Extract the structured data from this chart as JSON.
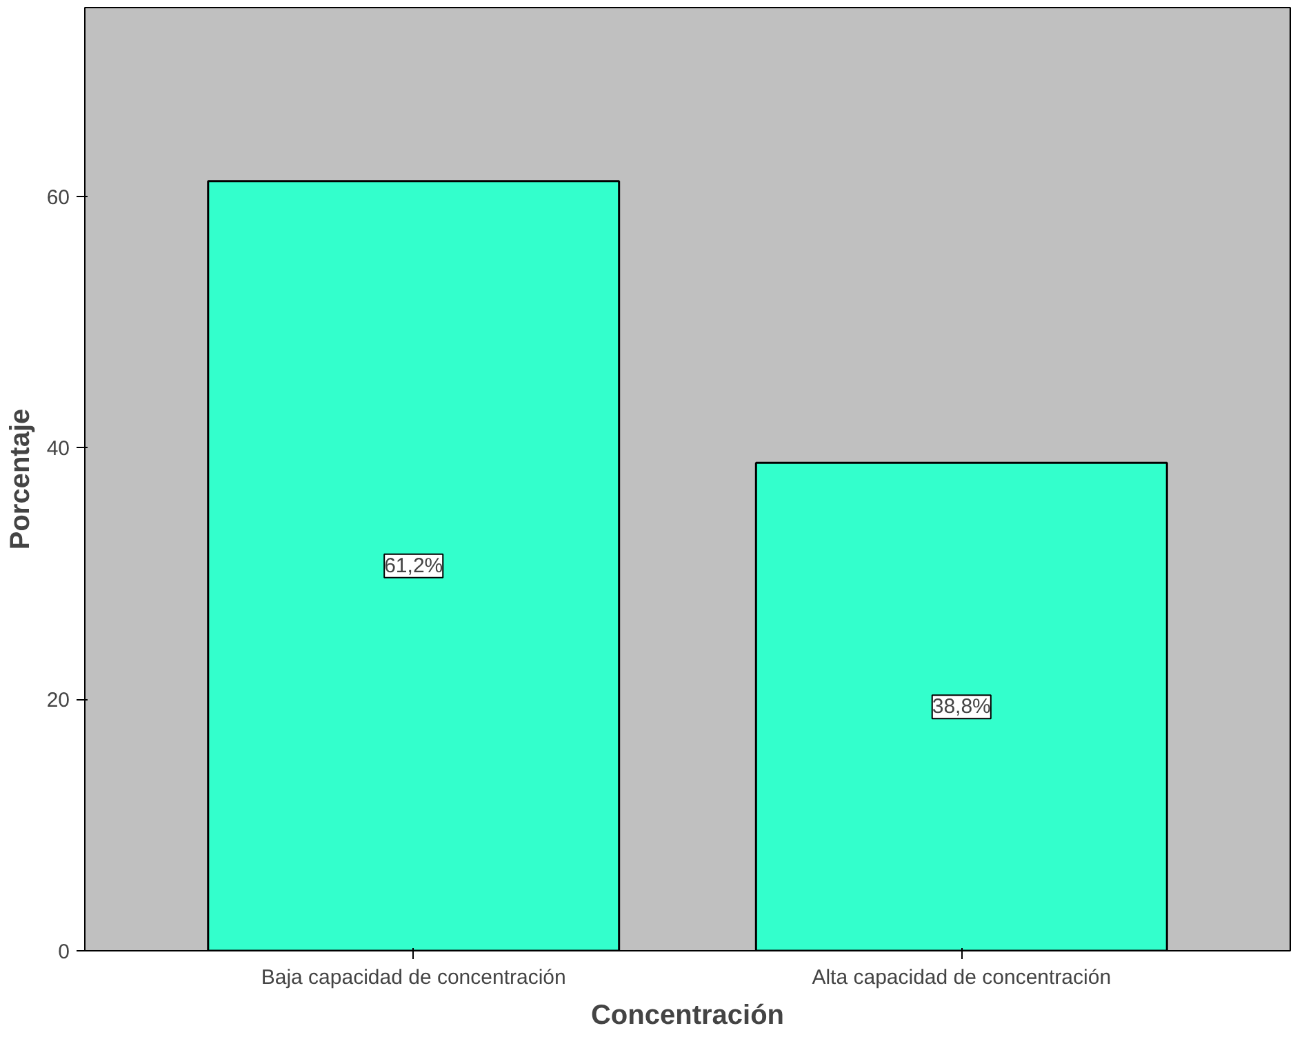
{
  "chart_data": {
    "type": "bar",
    "xlabel": "Concentración",
    "ylabel": "Porcentaje",
    "categories": [
      "Baja capacidad de concentración",
      "Alta capacidad de concentración"
    ],
    "values": [
      61.2,
      38.8
    ],
    "value_labels": [
      "61,2%",
      "38,8%"
    ],
    "color": "#33ffcc",
    "ylim": [
      0,
      75
    ],
    "yticks": [
      0,
      20,
      40,
      60
    ],
    "grid": false
  }
}
